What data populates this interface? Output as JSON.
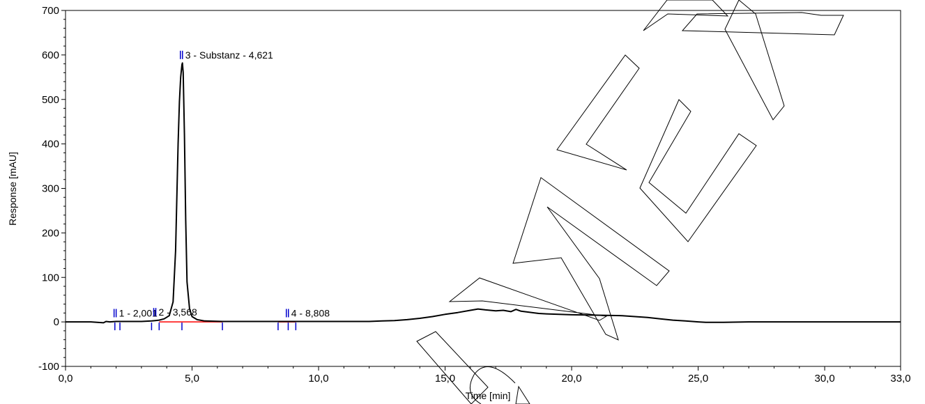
{
  "chart_data": {
    "type": "line",
    "xlabel": "Time [min]",
    "ylabel": "Response [mAU]",
    "xlim": [
      0,
      33
    ],
    "ylim": [
      -100,
      700
    ],
    "x_ticks": [
      "0,0",
      "5,0",
      "10,0",
      "15,0",
      "20,0",
      "25,0",
      "30,0",
      "33,0"
    ],
    "y_ticks": [
      "-100",
      "0",
      "100",
      "200",
      "300",
      "400",
      "500",
      "600",
      "700"
    ],
    "grid": false,
    "series": [
      {
        "x": [
          0.0,
          1.0,
          1.5,
          1.6,
          1.75,
          2.0,
          2.5,
          3.0,
          3.4,
          3.55,
          3.7,
          3.9,
          4.1,
          4.25,
          4.35,
          4.45,
          4.5,
          4.55,
          4.6,
          4.62,
          4.65,
          4.7,
          4.75,
          4.8,
          4.9,
          5.0,
          5.2,
          5.5,
          6.2,
          7.0,
          8.0,
          9.0,
          10.0,
          11.0,
          12.0,
          12.5,
          13.0,
          13.5,
          14.0,
          14.5,
          15.0,
          15.5,
          16.0,
          16.3,
          16.6,
          17.0,
          17.3,
          17.6,
          17.8,
          18.0,
          18.3,
          18.7,
          19.0,
          19.5,
          20.0,
          21.0,
          22.0,
          22.5,
          23.0,
          23.5,
          24.0,
          24.5,
          25.0,
          25.3,
          25.6,
          26.0,
          27.0,
          28.0,
          30.0,
          33.0
        ],
        "y": [
          0,
          0,
          -2,
          1,
          0,
          1,
          1,
          1,
          2,
          3,
          4,
          7,
          14,
          45,
          160,
          400,
          495,
          550,
          578,
          582,
          560,
          420,
          230,
          90,
          30,
          12,
          5,
          2,
          1,
          1,
          1,
          1,
          1,
          1,
          1,
          2,
          3,
          5,
          8,
          12,
          17,
          21,
          26,
          29,
          27,
          25,
          26,
          23,
          28,
          24,
          22,
          19,
          18,
          17,
          16,
          15,
          14,
          12,
          10,
          7,
          4,
          2,
          0,
          -1,
          -1,
          -1,
          0,
          0,
          0,
          0
        ]
      }
    ],
    "peaks": [
      {
        "label": "1 - 2,001",
        "time": 2.001
      },
      {
        "label": "2 - 3,568",
        "time": 3.568
      },
      {
        "label": "3 - Substanz - 4,621",
        "time": 4.621
      },
      {
        "label": "4 - 8,808",
        "time": 8.808
      }
    ],
    "baseline_segments": [
      [
        3.7,
        6.2
      ],
      [
        8.4,
        9.1
      ]
    ],
    "integration_markers": [
      1.95,
      2.15,
      3.4,
      3.7,
      4.6,
      6.2,
      8.4,
      8.8,
      9.1
    ],
    "colors": {
      "trace": "#000000",
      "baseline": "#ff0000",
      "marker": "#0000cc",
      "axis": "#000000"
    }
  }
}
